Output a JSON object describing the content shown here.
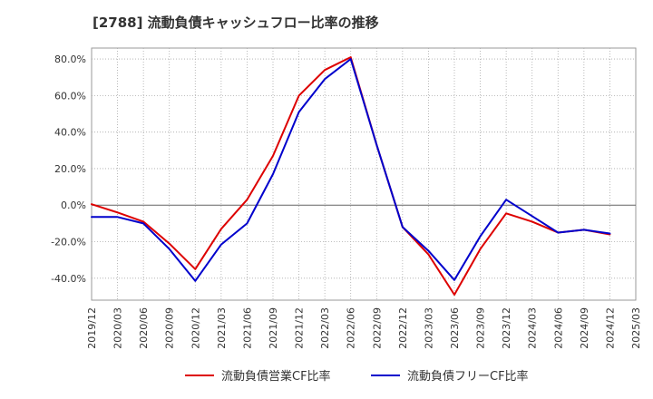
{
  "chart_data": {
    "type": "line",
    "title": "[2788]  流動負債キャッシュフロー比率の推移",
    "xlabel": "",
    "ylabel": "",
    "x": [
      "2019/12",
      "2020/03",
      "2020/06",
      "2020/09",
      "2020/12",
      "2021/03",
      "2021/06",
      "2021/09",
      "2021/12",
      "2022/03",
      "2022/06",
      "2022/09",
      "2022/12",
      "2023/03",
      "2023/06",
      "2023/09",
      "2023/12",
      "2024/03",
      "2024/06",
      "2024/09",
      "2024/12",
      "2025/03"
    ],
    "x_tick_labels": [
      "2019/12",
      "2020/03",
      "2020/06",
      "2020/09",
      "2020/12",
      "2021/03",
      "2021/06",
      "2021/09",
      "2021/12",
      "2022/03",
      "2022/06",
      "2022/09",
      "2022/12",
      "2023/03",
      "2023/06",
      "2023/09",
      "2023/12",
      "2024/03",
      "2024/06",
      "2024/09",
      "2024/12",
      "2025/03"
    ],
    "y_ticks": [
      -40,
      -20,
      0,
      20,
      40,
      60,
      80
    ],
    "y_tick_labels": [
      "-40.0%",
      "-20.0%",
      "0.0%",
      "20.0%",
      "40.0%",
      "60.0%",
      "80.0%"
    ],
    "ylim": [
      -52,
      86
    ],
    "grid": true,
    "legend_position": "bottom",
    "series": [
      {
        "name": "流動負債営業CF比率",
        "color": "#dd0000",
        "values": [
          0.5,
          -4,
          -9,
          -21,
          -35,
          -13,
          3,
          27,
          60,
          74,
          81,
          33,
          -12,
          -27,
          -49,
          -24,
          -4.5,
          -9,
          -15,
          -13.5,
          -16,
          null
        ]
      },
      {
        "name": "流動負債フリーCF比率",
        "color": "#0000cc",
        "values": [
          -6.5,
          -6.5,
          -10,
          -24,
          -41.5,
          -21.5,
          -10,
          17,
          51,
          69,
          80,
          33,
          -12,
          -25,
          -41,
          -17,
          3,
          -6,
          -15,
          -13.5,
          -15.5,
          null
        ]
      }
    ]
  }
}
